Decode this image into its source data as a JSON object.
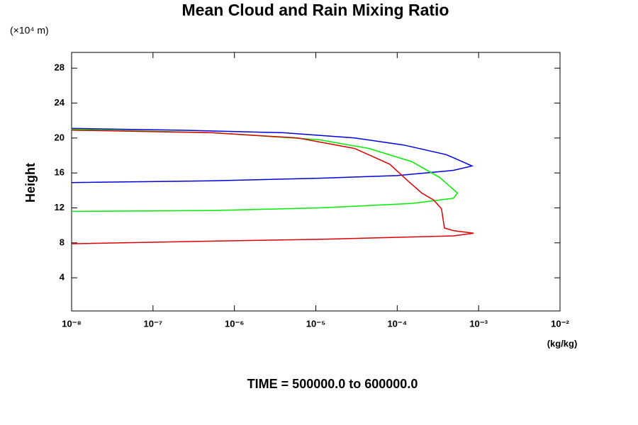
{
  "chart_data": {
    "type": "line",
    "title": "Mean Cloud and Rain Mixing Ratio",
    "y_unit": "(×10⁴ m)",
    "ylabel": "Height",
    "xlabel": "(kg/kg)",
    "caption": "TIME = 500000.0 to 600000.0",
    "xscale": "log",
    "xlim": [
      1e-08,
      0.01
    ],
    "ylim": [
      0.2,
      29.8
    ],
    "xticks": [
      {
        "value": 1e-08,
        "label": "10⁻⁸"
      },
      {
        "value": 1e-07,
        "label": "10⁻⁷"
      },
      {
        "value": 1e-06,
        "label": "10⁻⁶"
      },
      {
        "value": 1e-05,
        "label": "10⁻⁵"
      },
      {
        "value": 0.0001,
        "label": "10⁻⁴"
      },
      {
        "value": 0.001,
        "label": "10⁻³"
      },
      {
        "value": 0.01,
        "label": "10⁻²"
      }
    ],
    "yticks": [
      4,
      8,
      12,
      16,
      20,
      24,
      28
    ],
    "series": [
      {
        "color": "#0000dd",
        "x": [
          1e-08,
          2e-07,
          4e-06,
          3e-05,
          0.00012,
          0.0004,
          0.00083,
          0.00049,
          0.0001,
          1.1e-05,
          5.4e-07,
          1e-08
        ],
        "y": [
          21.1,
          20.9,
          20.6,
          20.0,
          19.2,
          18.1,
          16.8,
          16.3,
          15.7,
          15.4,
          15.1,
          14.9
        ]
      },
      {
        "color": "#00ee00",
        "x": [
          1e-08,
          5.4e-07,
          1.1e-05,
          4.5e-05,
          0.00015,
          0.00033,
          0.00055,
          0.00049,
          0.00015,
          1.1e-05,
          5.4e-07,
          1e-08
        ],
        "y": [
          21.0,
          20.6,
          19.8,
          18.8,
          17.3,
          15.5,
          13.7,
          13.1,
          12.5,
          12.0,
          11.7,
          11.6
        ]
      },
      {
        "color": "#dd0000",
        "x": [
          1e-08,
          5.4e-07,
          6e-06,
          3e-05,
          8.1e-05,
          0.000135,
          0.0002,
          0.00028,
          0.00035,
          0.00038,
          0.00049,
          0.00087,
          0.00049,
          1.1e-05,
          5.4e-07,
          1e-08
        ],
        "y": [
          20.9,
          20.6,
          20.0,
          18.8,
          17.0,
          15.1,
          13.7,
          12.9,
          11.9,
          9.7,
          9.4,
          9.1,
          8.8,
          8.4,
          8.2,
          7.9
        ]
      }
    ]
  }
}
